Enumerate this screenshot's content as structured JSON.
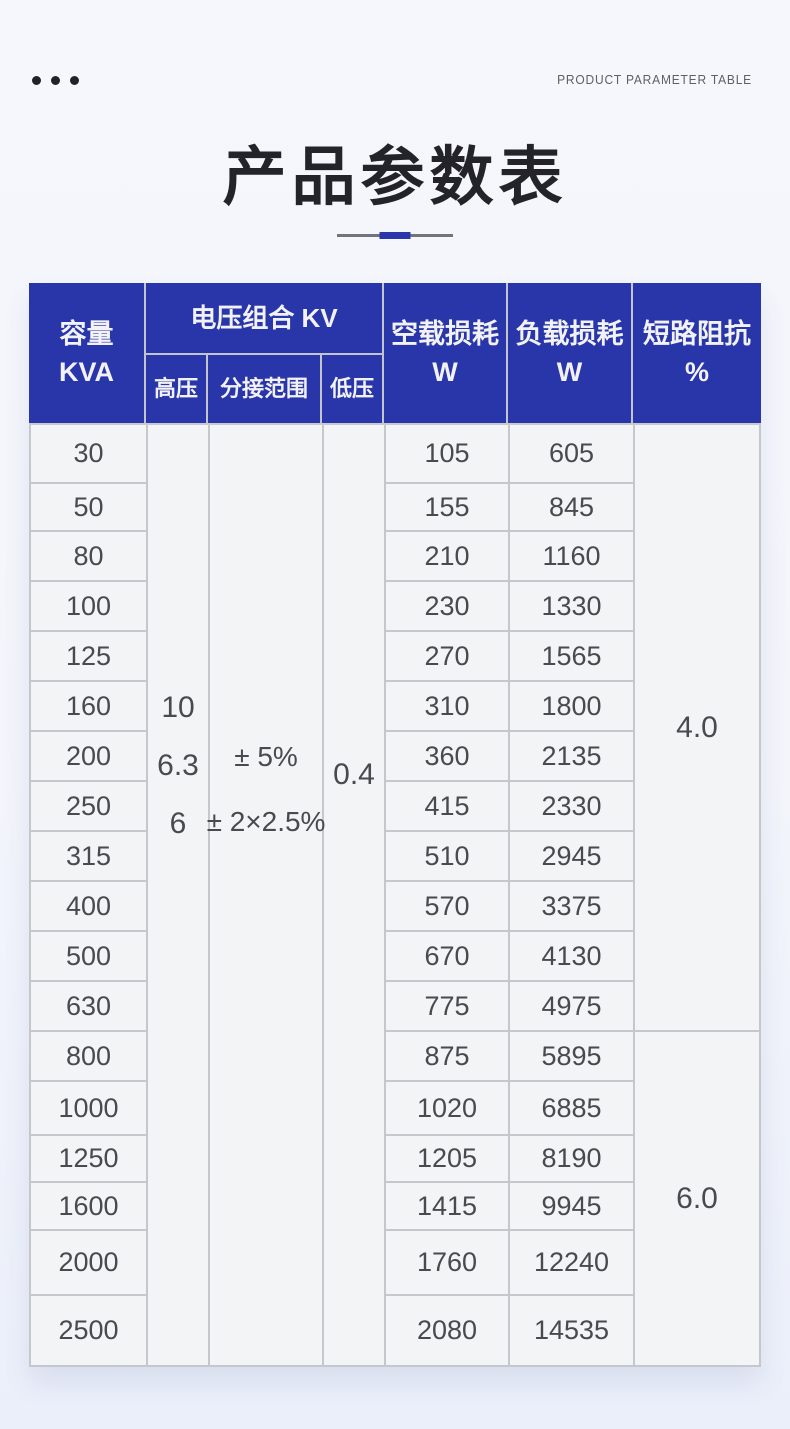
{
  "page": {
    "eyebrow": "PRODUCT PARAMETER TABLE",
    "title": "产品参数表"
  },
  "table": {
    "header": {
      "capacity": [
        "容量",
        "KVA"
      ],
      "voltage_group": "电压组合 KV",
      "hv": "高压",
      "tap_range": "分接范围",
      "lv": "低压",
      "no_load_loss": [
        "空载损耗",
        "W"
      ],
      "load_loss": [
        "负载损耗",
        "W"
      ],
      "impedance": [
        "短路阻抗",
        "%"
      ]
    },
    "merged": {
      "hv_values": [
        "10",
        "6.3",
        "6"
      ],
      "tap_values": [
        "± 5%",
        "± 2×2.5%"
      ],
      "lv_value": "0.4",
      "impedance_top": "4.0",
      "impedance_bottom": "6.0"
    },
    "rows": [
      {
        "capacity": "30",
        "no_load": "105",
        "load": "605"
      },
      {
        "capacity": "50",
        "no_load": "155",
        "load": "845"
      },
      {
        "capacity": "80",
        "no_load": "210",
        "load": "1160"
      },
      {
        "capacity": "100",
        "no_load": "230",
        "load": "1330"
      },
      {
        "capacity": "125",
        "no_load": "270",
        "load": "1565"
      },
      {
        "capacity": "160",
        "no_load": "310",
        "load": "1800"
      },
      {
        "capacity": "200",
        "no_load": "360",
        "load": "2135"
      },
      {
        "capacity": "250",
        "no_load": "415",
        "load": "2330"
      },
      {
        "capacity": "315",
        "no_load": "510",
        "load": "2945"
      },
      {
        "capacity": "400",
        "no_load": "570",
        "load": "3375"
      },
      {
        "capacity": "500",
        "no_load": "670",
        "load": "4130"
      },
      {
        "capacity": "630",
        "no_load": "775",
        "load": "4975"
      },
      {
        "capacity": "800",
        "no_load": "875",
        "load": "5895"
      },
      {
        "capacity": "1000",
        "no_load": "1020",
        "load": "6885"
      },
      {
        "capacity": "1250",
        "no_load": "1205",
        "load": "8190"
      },
      {
        "capacity": "1600",
        "no_load": "1415",
        "load": "9945"
      },
      {
        "capacity": "2000",
        "no_load": "1760",
        "load": "12240"
      },
      {
        "capacity": "2500",
        "no_load": "2080",
        "load": "14535"
      }
    ],
    "accent_color": "#2936a9",
    "divider_accent_color": "#2b36ad"
  }
}
